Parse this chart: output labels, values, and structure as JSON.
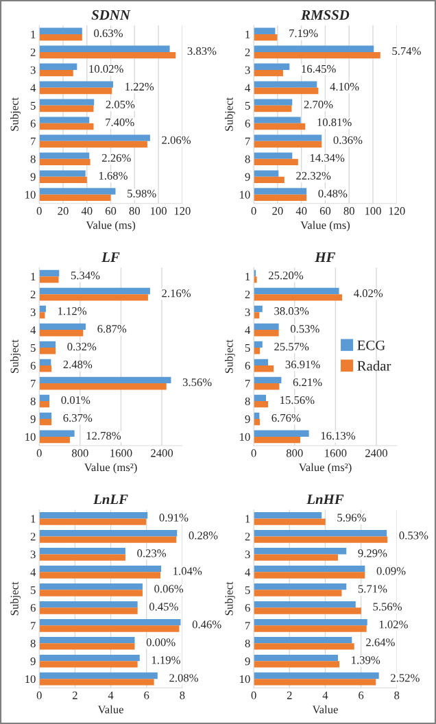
{
  "chart_data": [
    {
      "type": "bar",
      "orientation": "horizontal",
      "title": "SDNN",
      "xlabel": "Value (ms)",
      "ylabel": "Subject",
      "categories": [
        "1",
        "2",
        "3",
        "4",
        "5",
        "6",
        "7",
        "8",
        "9",
        "10"
      ],
      "xlim": [
        0,
        120
      ],
      "xticks": [
        0,
        20,
        40,
        60,
        80,
        100,
        120
      ],
      "grid": "x",
      "series": [
        {
          "color": "#5b9bd5",
          "values": [
            36,
            109.5,
            31.7,
            62,
            46,
            42,
            93,
            42,
            38.8,
            64
          ]
        },
        {
          "color": "#ed7d31",
          "values": [
            36,
            114.5,
            28.5,
            61,
            45.6,
            45.6,
            90.7,
            42.8,
            40,
            60
          ]
        }
      ],
      "annotations": [
        {
          "text": "0.63%",
          "x": 36,
          "y": "1"
        },
        {
          "text": "3.83%",
          "x": 114.5,
          "y": "2"
        },
        {
          "text": "10.02%",
          "x": 31.7,
          "y": "3"
        },
        {
          "text": "1.22%",
          "x": 62,
          "y": "4"
        },
        {
          "text": "2.05%",
          "x": 46,
          "y": "5"
        },
        {
          "text": "7.40%",
          "x": 45.6,
          "y": "6"
        },
        {
          "text": "2.06%",
          "x": 93,
          "y": "7"
        },
        {
          "text": "2.26%",
          "x": 42.8,
          "y": "8"
        },
        {
          "text": "1.68%",
          "x": 40,
          "y": "9"
        },
        {
          "text": "5.98%",
          "x": 64,
          "y": "10"
        }
      ]
    },
    {
      "type": "bar",
      "orientation": "horizontal",
      "title": "RMSSD",
      "xlabel": "Value (ms)",
      "ylabel": "Subject",
      "categories": [
        "1",
        "2",
        "3",
        "4",
        "5",
        "6",
        "7",
        "8",
        "9",
        "10"
      ],
      "xlim": [
        0,
        120
      ],
      "xticks": [
        0,
        20,
        40,
        60,
        80,
        100,
        120
      ],
      "grid": "x",
      "series": [
        {
          "color": "#5b9bd5",
          "values": [
            18,
            100.7,
            30,
            53,
            32.3,
            39.4,
            57,
            32.3,
            20.8,
            44.3
          ]
        },
        {
          "color": "#ed7d31",
          "values": [
            19.7,
            106.2,
            24.6,
            54.2,
            31.8,
            43.2,
            57,
            37.2,
            25.7,
            44.3
          ]
        }
      ],
      "annotations": [
        {
          "text": "7.19%",
          "x": 19.7,
          "y": "1"
        },
        {
          "text": "5.74%",
          "x": 106.2,
          "y": "2"
        },
        {
          "text": "16.45%",
          "x": 30,
          "y": "3"
        },
        {
          "text": "4.10%",
          "x": 54.2,
          "y": "4"
        },
        {
          "text": "2.70%",
          "x": 32.3,
          "y": "5"
        },
        {
          "text": "10.81%",
          "x": 43.2,
          "y": "6"
        },
        {
          "text": "0.36%",
          "x": 57,
          "y": "7"
        },
        {
          "text": "14.34%",
          "x": 37.2,
          "y": "8"
        },
        {
          "text": "22.32%",
          "x": 25.7,
          "y": "9"
        },
        {
          "text": "0.48%",
          "x": 44.3,
          "y": "10"
        }
      ]
    },
    {
      "type": "bar",
      "orientation": "horizontal",
      "title": "LF",
      "xlabel": "Value (ms²)",
      "ylabel": "Subject",
      "categories": [
        "1",
        "2",
        "3",
        "4",
        "5",
        "6",
        "7",
        "8",
        "9",
        "10"
      ],
      "xlim": [
        0,
        2800
      ],
      "xticks": [
        0,
        800,
        1600,
        2400
      ],
      "grid": "x",
      "series": [
        {
          "color": "#5b9bd5",
          "values": [
            390,
            2170,
            130,
            910,
            320,
            230,
            2580,
            200,
            240,
            690
          ]
        },
        {
          "color": "#ed7d31",
          "values": [
            380,
            2130,
            110,
            860,
            320,
            240,
            2490,
            200,
            240,
            600
          ]
        }
      ],
      "annotations": [
        {
          "text": "5.34%",
          "x": 390,
          "y": "1"
        },
        {
          "text": "2.16%",
          "x": 2170,
          "y": "2"
        },
        {
          "text": "1.12%",
          "x": 130,
          "y": "3"
        },
        {
          "text": "6.87%",
          "x": 910,
          "y": "4"
        },
        {
          "text": "0.32%",
          "x": 320,
          "y": "5"
        },
        {
          "text": "2.48%",
          "x": 240,
          "y": "6"
        },
        {
          "text": "3.56%",
          "x": 2580,
          "y": "7"
        },
        {
          "text": "0.01%",
          "x": 200,
          "y": "8"
        },
        {
          "text": "6.37%",
          "x": 240,
          "y": "9"
        },
        {
          "text": "12.78%",
          "x": 690,
          "y": "10"
        }
      ]
    },
    {
      "type": "bar",
      "orientation": "horizontal",
      "title": "HF",
      "xlabel": "Value (ms²)",
      "ylabel": "Subject",
      "categories": [
        "1",
        "2",
        "3",
        "4",
        "5",
        "6",
        "7",
        "8",
        "9",
        "10"
      ],
      "xlim": [
        0,
        2800
      ],
      "xticks": [
        0,
        800,
        1600,
        2400
      ],
      "grid": "x",
      "legend": "right",
      "series": [
        {
          "name": "ECG",
          "color": "#5b9bd5",
          "values": [
            40,
            1670,
            170,
            490,
            170,
            280,
            540,
            240,
            110,
            1080
          ]
        },
        {
          "name": "Radar",
          "color": "#ed7d31",
          "values": [
            60,
            1730,
            110,
            490,
            120,
            390,
            500,
            280,
            120,
            910
          ]
        }
      ],
      "annotations": [
        {
          "text": "25.20%",
          "x": 60,
          "y": "1"
        },
        {
          "text": "4.02%",
          "x": 1730,
          "y": "2"
        },
        {
          "text": "38.03%",
          "x": 170,
          "y": "3"
        },
        {
          "text": "0.53%",
          "x": 490,
          "y": "4"
        },
        {
          "text": "25.57%",
          "x": 170,
          "y": "5"
        },
        {
          "text": "36.91%",
          "x": 390,
          "y": "6"
        },
        {
          "text": "6.21%",
          "x": 540,
          "y": "7"
        },
        {
          "text": "15.56%",
          "x": 280,
          "y": "8"
        },
        {
          "text": "6.76%",
          "x": 120,
          "y": "9"
        },
        {
          "text": "16.13%",
          "x": 1080,
          "y": "10"
        }
      ]
    },
    {
      "type": "bar",
      "orientation": "horizontal",
      "title": "LnLF",
      "xlabel": "Value",
      "ylabel": "Subject",
      "categories": [
        "1",
        "2",
        "3",
        "4",
        "5",
        "6",
        "7",
        "8",
        "9",
        "10"
      ],
      "xlim": [
        0,
        8
      ],
      "xticks": [
        0,
        2,
        4,
        6,
        8
      ],
      "grid": "x",
      "series": [
        {
          "color": "#5b9bd5",
          "values": [
            6.06,
            7.71,
            4.82,
            6.82,
            5.78,
            5.5,
            7.91,
            5.34,
            5.62,
            6.62
          ]
        },
        {
          "color": "#ed7d31",
          "values": [
            5.98,
            7.67,
            4.82,
            6.78,
            5.78,
            5.5,
            7.83,
            5.34,
            5.5,
            6.42
          ]
        }
      ],
      "annotations": [
        {
          "text": "0.91%",
          "x": 6.06,
          "y": "1"
        },
        {
          "text": "0.28%",
          "x": 7.71,
          "y": "2"
        },
        {
          "text": "0.23%",
          "x": 4.82,
          "y": "3"
        },
        {
          "text": "1.04%",
          "x": 6.82,
          "y": "4"
        },
        {
          "text": "0.06%",
          "x": 5.78,
          "y": "5"
        },
        {
          "text": "0.45%",
          "x": 5.5,
          "y": "6"
        },
        {
          "text": "0.46%",
          "x": 7.91,
          "y": "7"
        },
        {
          "text": "0.00%",
          "x": 5.34,
          "y": "8"
        },
        {
          "text": "1.19%",
          "x": 5.62,
          "y": "9"
        },
        {
          "text": "2.08%",
          "x": 6.62,
          "y": "10"
        }
      ]
    },
    {
      "type": "bar",
      "orientation": "horizontal",
      "title": "LnHF",
      "xlabel": "Value",
      "ylabel": "Subject",
      "categories": [
        "1",
        "2",
        "3",
        "4",
        "5",
        "6",
        "7",
        "8",
        "9",
        "10"
      ],
      "xlim": [
        0,
        8
      ],
      "xticks": [
        0,
        2,
        4,
        6,
        8
      ],
      "grid": "x",
      "series": [
        {
          "color": "#5b9bd5",
          "values": [
            3.8,
            7.44,
            5.18,
            6.22,
            5.18,
            5.7,
            6.35,
            5.49,
            4.71,
            7.0
          ]
        },
        {
          "color": "#ed7d31",
          "values": [
            4.01,
            7.48,
            4.71,
            6.22,
            4.92,
            6.01,
            6.31,
            5.62,
            4.79,
            6.83
          ]
        }
      ],
      "annotations": [
        {
          "text": "5.96%",
          "x": 4.01,
          "y": "1"
        },
        {
          "text": "0.53%",
          "x": 7.48,
          "y": "2"
        },
        {
          "text": "9.29%",
          "x": 5.18,
          "y": "3"
        },
        {
          "text": "0.09%",
          "x": 6.22,
          "y": "4"
        },
        {
          "text": "5.71%",
          "x": 5.18,
          "y": "5"
        },
        {
          "text": "5.56%",
          "x": 6.01,
          "y": "6"
        },
        {
          "text": "1.02%",
          "x": 6.35,
          "y": "7"
        },
        {
          "text": "2.64%",
          "x": 5.62,
          "y": "8"
        },
        {
          "text": "1.39%",
          "x": 4.79,
          "y": "9"
        },
        {
          "text": "2.52%",
          "x": 7.0,
          "y": "10"
        }
      ]
    }
  ]
}
